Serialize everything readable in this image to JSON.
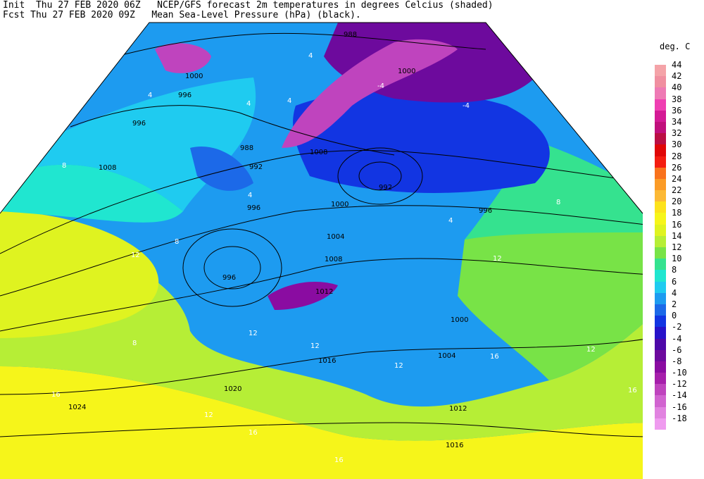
{
  "header": {
    "init_line": "Init  Thu 27 FEB 2020 06Z   NCEP/GFS forecast 2m temperatures in degrees Celcius (shaded)",
    "fcst_line": "Fcst Thu 27 FEB 2020 09Z   Mean Sea-Level Pressure (hPa) (black)."
  },
  "legend": {
    "title": "deg. C",
    "items": [
      {
        "label": "44",
        "color": "#f4a3a8"
      },
      {
        "label": "42",
        "color": "#f08fa0"
      },
      {
        "label": "40",
        "color": "#ee7ab4"
      },
      {
        "label": "38",
        "color": "#ef3fb2"
      },
      {
        "label": "36",
        "color": "#d41a95"
      },
      {
        "label": "34",
        "color": "#c0107c"
      },
      {
        "label": "32",
        "color": "#ba0f44"
      },
      {
        "label": "30",
        "color": "#e00707"
      },
      {
        "label": "28",
        "color": "#f41d10"
      },
      {
        "label": "26",
        "color": "#f9721c"
      },
      {
        "label": "24",
        "color": "#fb9b26"
      },
      {
        "label": "22",
        "color": "#fcb935"
      },
      {
        "label": "20",
        "color": "#fde21b"
      },
      {
        "label": "18",
        "color": "#f6f51a"
      },
      {
        "label": "16",
        "color": "#dff320"
      },
      {
        "label": "14",
        "color": "#b6ee36"
      },
      {
        "label": "12",
        "color": "#78e347"
      },
      {
        "label": "10",
        "color": "#35e28f"
      },
      {
        "label": "8",
        "color": "#20e6d0"
      },
      {
        "label": "6",
        "color": "#1fcbf0"
      },
      {
        "label": "4",
        "color": "#1d9bf0"
      },
      {
        "label": "2",
        "color": "#1c69e8"
      },
      {
        "label": "0",
        "color": "#1235e2"
      },
      {
        "label": "-2",
        "color": "#2712c9"
      },
      {
        "label": "-4",
        "color": "#4d08a8"
      },
      {
        "label": "-6",
        "color": "#6d0a9d"
      },
      {
        "label": "-8",
        "color": "#8a0ca1"
      },
      {
        "label": "-10",
        "color": "#a61fab"
      },
      {
        "label": "-12",
        "color": "#bf44be"
      },
      {
        "label": "-14",
        "color": "#d164d0"
      },
      {
        "label": "-16",
        "color": "#e183e0"
      },
      {
        "label": "-18",
        "color": "#ef9bef"
      }
    ]
  },
  "isobar_labels": [
    "988",
    "1000",
    "996",
    "996",
    "988",
    "992",
    "996",
    "992",
    "1000",
    "1008",
    "996",
    "1000",
    "1004",
    "1008",
    "996",
    "1012",
    "1000",
    "1004",
    "1016",
    "1020",
    "1024",
    "1012",
    "1016",
    "1008"
  ],
  "temp_labels": [
    "4",
    "4",
    "4",
    "-4",
    "-4",
    "4",
    "8",
    "4",
    "4",
    "12",
    "8",
    "8",
    "12",
    "8",
    "12",
    "12",
    "12",
    "16",
    "16",
    "12",
    "16",
    "12",
    "16",
    "16"
  ]
}
